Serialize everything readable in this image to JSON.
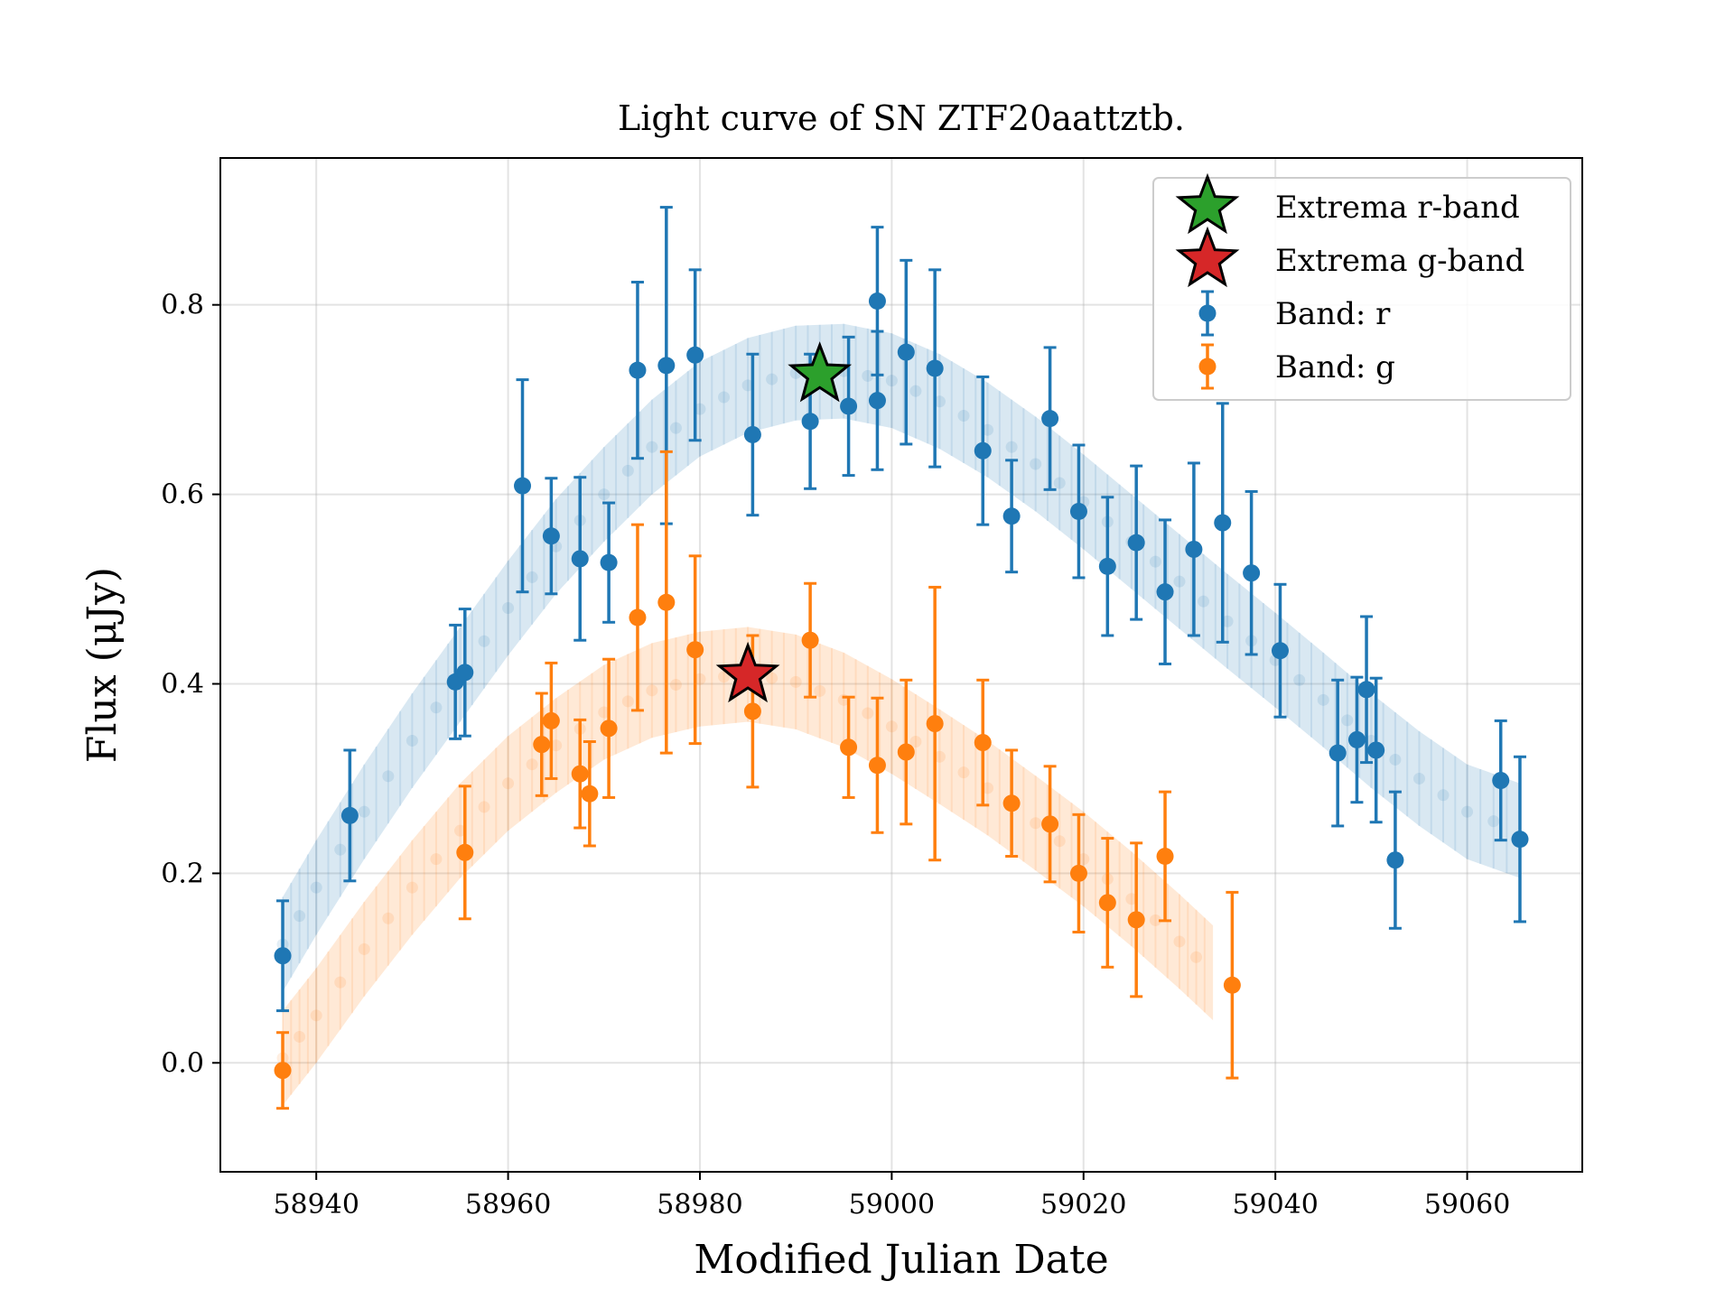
{
  "chart_data": {
    "type": "scatter",
    "title": "Light curve of SN ZTF20aattztb.",
    "xlabel": "Modified Julian Date",
    "ylabel": "Flux (μJy)",
    "xlim": [
      58930,
      59072
    ],
    "ylim": [
      -0.115,
      0.955
    ],
    "xticks": [
      58940,
      58960,
      58980,
      59000,
      59020,
      59040,
      59060
    ],
    "yticks": [
      0.0,
      0.2,
      0.4,
      0.6,
      0.8
    ],
    "xtick_labels": [
      "58940",
      "58960",
      "58980",
      "59000",
      "59020",
      "59040",
      "59060"
    ],
    "ytick_labels": [
      "0.0",
      "0.2",
      "0.4",
      "0.6",
      "0.8"
    ],
    "grid": true,
    "legend_position": "top-right",
    "legend": [
      {
        "label": "Extrema r-band",
        "marker": "star",
        "color": "#2ca02c"
      },
      {
        "label": "Extrema g-band",
        "marker": "star",
        "color": "#d62728"
      },
      {
        "label": "Band: r",
        "marker": "errorbar",
        "color": "#1f77b4"
      },
      {
        "label": "Band: g",
        "marker": "errorbar",
        "color": "#ff7f0e"
      }
    ],
    "series": [
      {
        "name": "Band: r",
        "color": "#1f77b4",
        "x": [
          58936.5,
          58943.5,
          58954.5,
          58955.5,
          58961.5,
          58964.5,
          58967.5,
          58970.5,
          58973.5,
          58976.5,
          58979.5,
          58985.5,
          58991.5,
          58995.5,
          58998.5,
          58998.5,
          59001.5,
          59004.5,
          59009.5,
          59012.5,
          59016.5,
          59019.5,
          59022.5,
          59025.5,
          59028.5,
          59031.5,
          59034.5,
          59037.5,
          59040.5,
          59046.5,
          59048.5,
          59049.5,
          59050.5,
          59052.5,
          59063.5,
          59065.5
        ],
        "y": [
          0.113,
          0.261,
          0.402,
          0.412,
          0.609,
          0.556,
          0.532,
          0.528,
          0.731,
          0.736,
          0.747,
          0.663,
          0.677,
          0.693,
          0.804,
          0.699,
          0.75,
          0.733,
          0.646,
          0.577,
          0.68,
          0.582,
          0.524,
          0.549,
          0.497,
          0.542,
          0.57,
          0.517,
          0.435,
          0.327,
          0.341,
          0.394,
          0.33,
          0.214,
          0.298,
          0.236
        ],
        "yerr": [
          0.058,
          0.069,
          0.06,
          0.067,
          0.112,
          0.061,
          0.086,
          0.063,
          0.093,
          0.167,
          0.09,
          0.085,
          0.071,
          0.073,
          0.078,
          0.073,
          0.097,
          0.104,
          0.078,
          0.059,
          0.075,
          0.07,
          0.073,
          0.081,
          0.076,
          0.091,
          0.126,
          0.086,
          0.07,
          0.077,
          0.066,
          0.077,
          0.076,
          0.072,
          0.063,
          0.087
        ]
      },
      {
        "name": "Band: g",
        "color": "#ff7f0e",
        "x": [
          58936.5,
          58955.5,
          58963.5,
          58964.5,
          58967.5,
          58968.5,
          58970.5,
          58973.5,
          58976.5,
          58979.5,
          58985.5,
          58991.5,
          58995.5,
          58998.5,
          59001.5,
          59004.5,
          59009.5,
          59012.5,
          59016.5,
          59019.5,
          59022.5,
          59025.5,
          59028.5,
          59035.5
        ],
        "y": [
          -0.008,
          0.222,
          0.336,
          0.361,
          0.305,
          0.284,
          0.353,
          0.47,
          0.486,
          0.436,
          0.371,
          0.446,
          0.333,
          0.314,
          0.328,
          0.358,
          0.338,
          0.274,
          0.252,
          0.2,
          0.169,
          0.151,
          0.218,
          0.082
        ],
        "yerr": [
          0.04,
          0.07,
          0.054,
          0.061,
          0.057,
          0.055,
          0.073,
          0.098,
          0.159,
          0.099,
          0.08,
          0.06,
          0.053,
          0.071,
          0.076,
          0.144,
          0.066,
          0.056,
          0.061,
          0.062,
          0.068,
          0.081,
          0.068,
          0.098
        ]
      }
    ],
    "models": [
      {
        "band": "r",
        "color": "#1f77b4",
        "x": [
          58936.5,
          58940,
          58945,
          58950,
          58955,
          58960,
          58965,
          58970,
          58975,
          58980,
          58985,
          58990,
          58995,
          59000,
          59005,
          59010,
          59015,
          59020,
          59025,
          59030,
          59035,
          59040,
          59045,
          59050,
          59055,
          59060,
          59065.5
        ],
        "y": [
          0.125,
          0.185,
          0.265,
          0.34,
          0.41,
          0.48,
          0.545,
          0.6,
          0.65,
          0.69,
          0.715,
          0.728,
          0.73,
          0.72,
          0.698,
          0.668,
          0.632,
          0.592,
          0.55,
          0.508,
          0.466,
          0.425,
          0.383,
          0.34,
          0.3,
          0.265,
          0.245
        ],
        "halfwidth": 0.05
      },
      {
        "band": "g",
        "color": "#ff7f0e",
        "x": [
          58936.5,
          58940,
          58945,
          58950,
          58955,
          58960,
          58965,
          58970,
          58975,
          58980,
          58985,
          58990,
          58995,
          59000,
          59005,
          59010,
          59015,
          59020,
          59025,
          59030,
          59033.5
        ],
        "y": [
          0.005,
          0.05,
          0.12,
          0.185,
          0.245,
          0.295,
          0.335,
          0.37,
          0.393,
          0.405,
          0.41,
          0.402,
          0.383,
          0.355,
          0.323,
          0.29,
          0.253,
          0.215,
          0.173,
          0.128,
          0.095
        ],
        "halfwidth": 0.05
      }
    ],
    "extrema": [
      {
        "name": "Extrema r-band",
        "x": 58992.5,
        "y": 0.726,
        "color": "#2ca02c"
      },
      {
        "name": "Extrema g-band",
        "x": 58985,
        "y": 0.409,
        "color": "#d62728"
      }
    ]
  }
}
